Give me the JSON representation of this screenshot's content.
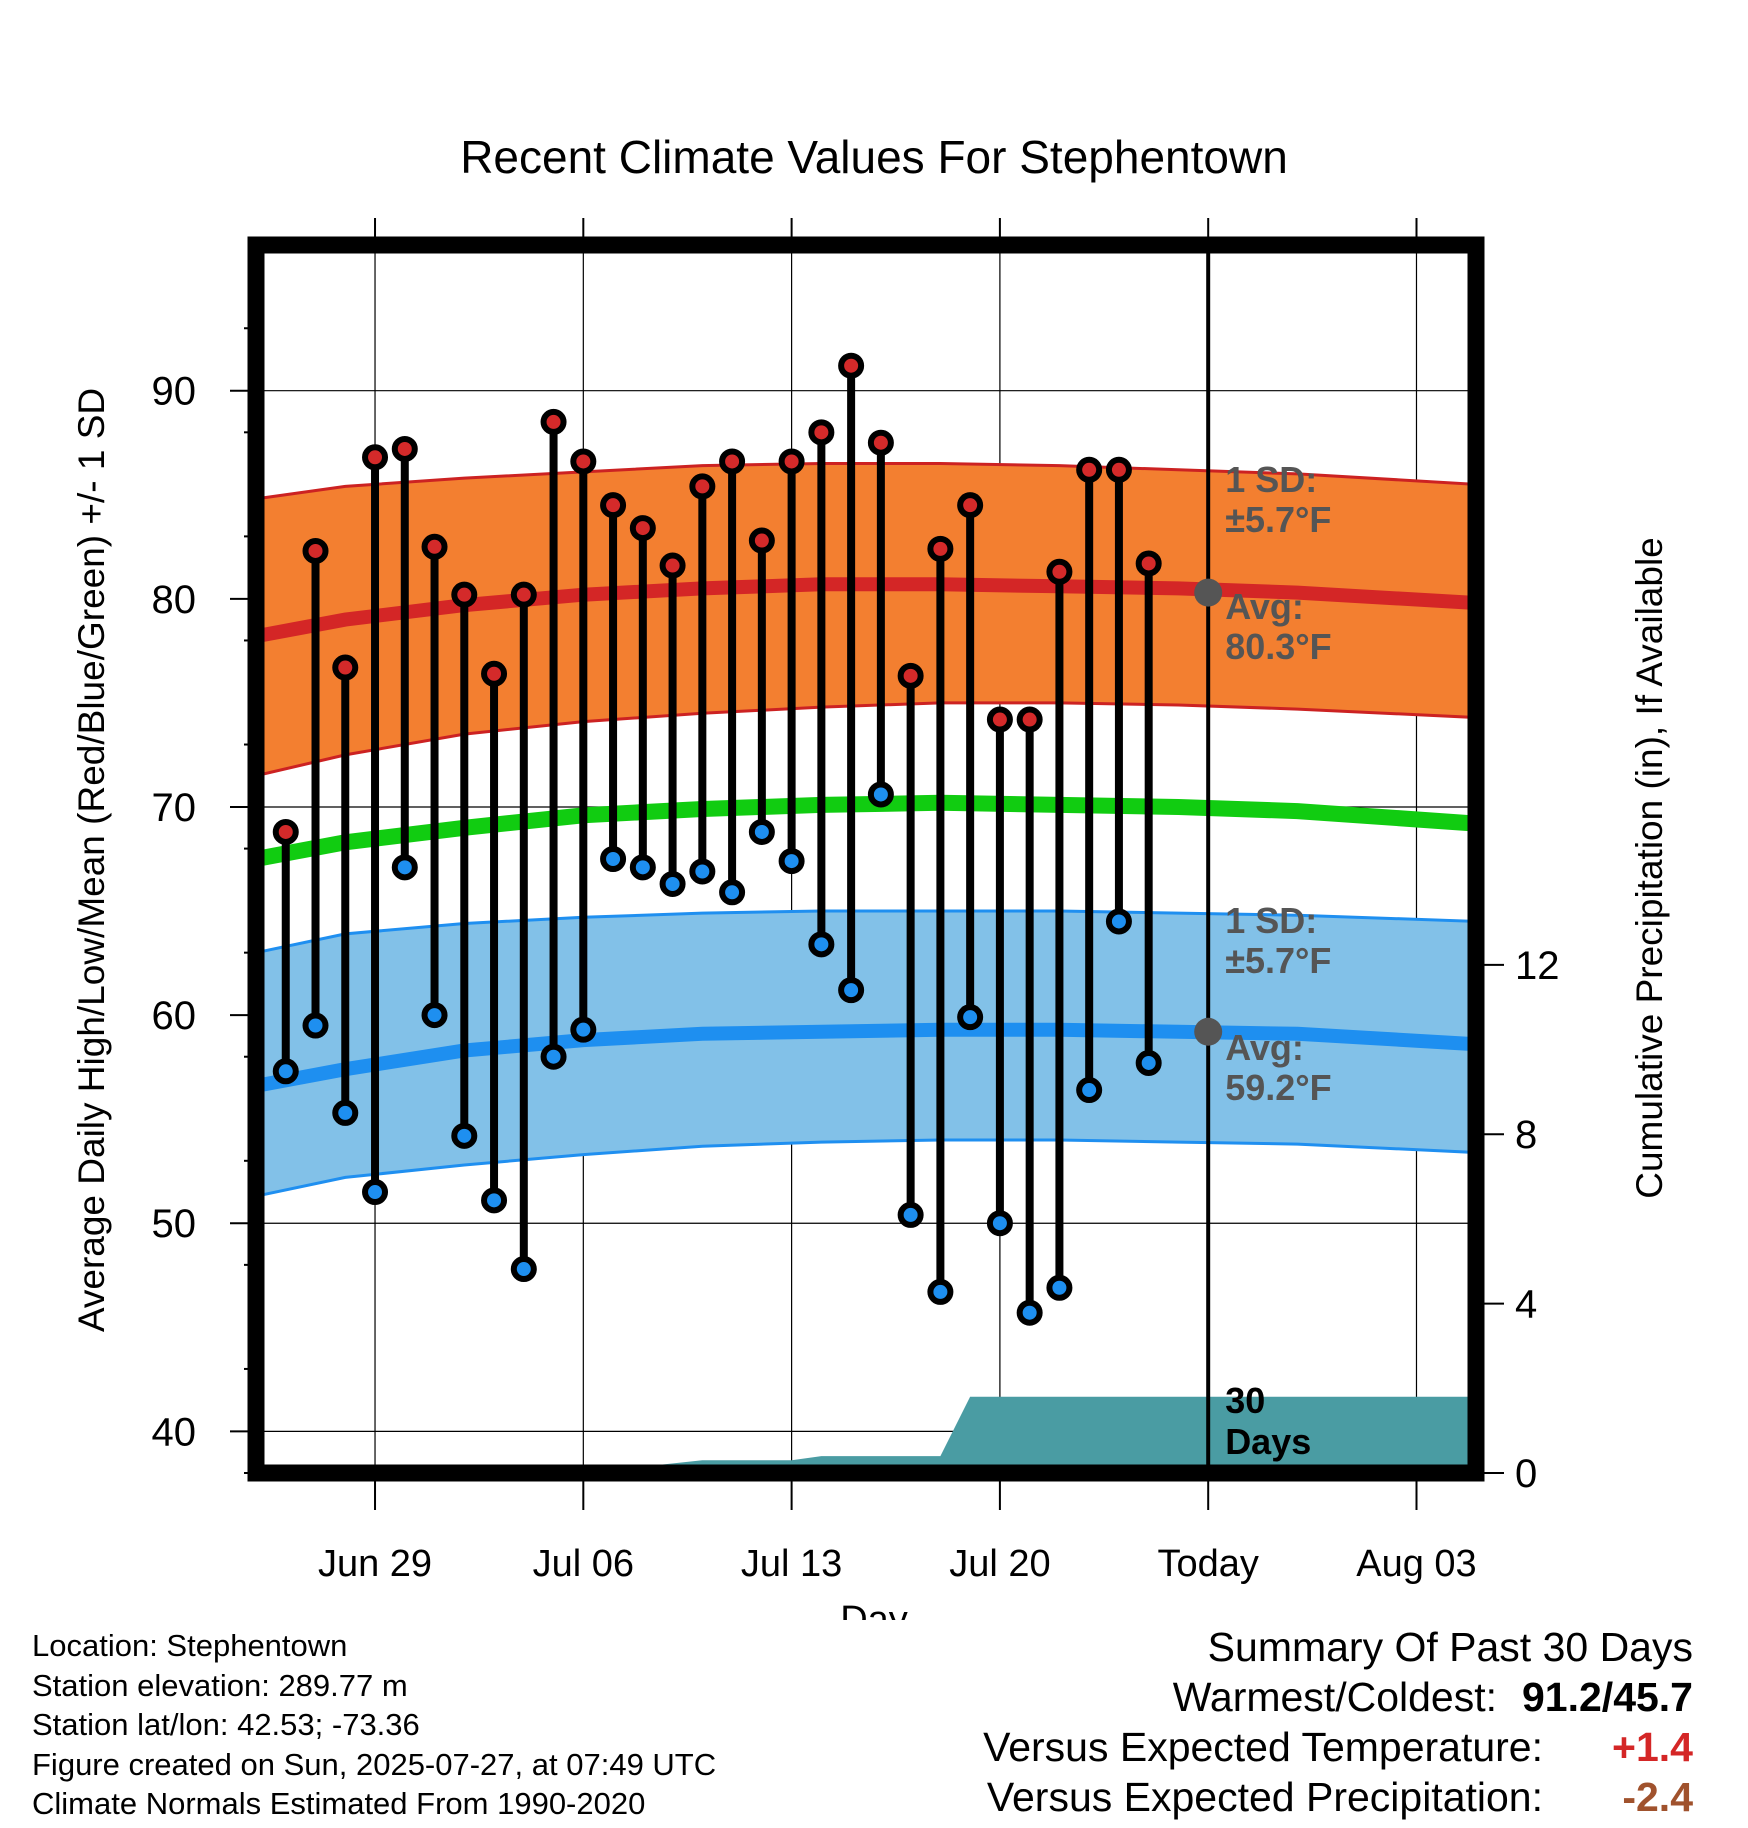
{
  "colors": {
    "high_point": "#d42a2a",
    "low_point": "#1e8ff0",
    "high_band": "#f37f30",
    "high_band_edge": "#cc2222",
    "high_avg_line": "#d42626",
    "low_band": "#82c1e8",
    "low_band_edge": "#1f8ff0",
    "low_avg_line": "#1e8ff0",
    "mean_line": "#11cc11",
    "precip_fill": "#4a9ca3",
    "annotation": "#555555",
    "temp_departure": "#d42626",
    "precip_departure": "#a0522d"
  },
  "chart_data": {
    "type": "range-dot",
    "title": "Recent Climate Values For Stephentown",
    "xlabel": "Day",
    "ylabel": "Average Daily High/Low/Mean (Red/Blue/Green) +/- 1 SD",
    "y2label": "Cumulative Precipitation (in), If Available",
    "ylim": [
      38,
      97
    ],
    "y2lim": [
      0,
      29
    ],
    "xlim": [
      "2025-06-25",
      "2025-08-05"
    ],
    "yticks": [
      40,
      50,
      60,
      70,
      80,
      90
    ],
    "y2ticks": [
      0,
      4,
      8,
      12
    ],
    "xticks": [
      {
        "date": "2025-06-29",
        "label": "Jun 29"
      },
      {
        "date": "2025-07-06",
        "label": "Jul 06"
      },
      {
        "date": "2025-07-13",
        "label": "Jul 13"
      },
      {
        "date": "2025-07-20",
        "label": "Jul 20"
      },
      {
        "date": "2025-07-27",
        "label": "Today"
      },
      {
        "date": "2025-08-03",
        "label": "Aug 03"
      }
    ],
    "today": "2025-07-27",
    "observed": [
      {
        "date": "2025-06-26",
        "high": 68.8,
        "low": 57.3
      },
      {
        "date": "2025-06-27",
        "high": 82.3,
        "low": 59.5
      },
      {
        "date": "2025-06-28",
        "high": 76.7,
        "low": 55.3
      },
      {
        "date": "2025-06-29",
        "high": 86.8,
        "low": 51.5
      },
      {
        "date": "2025-06-30",
        "high": 87.2,
        "low": 67.1
      },
      {
        "date": "2025-07-01",
        "high": 82.5,
        "low": 60.0
      },
      {
        "date": "2025-07-02",
        "high": 80.2,
        "low": 54.2
      },
      {
        "date": "2025-07-03",
        "high": 76.4,
        "low": 51.1
      },
      {
        "date": "2025-07-04",
        "high": 80.2,
        "low": 47.8
      },
      {
        "date": "2025-07-05",
        "high": 88.5,
        "low": 58.0
      },
      {
        "date": "2025-07-06",
        "high": 86.6,
        "low": 59.3
      },
      {
        "date": "2025-07-07",
        "high": 84.5,
        "low": 67.5
      },
      {
        "date": "2025-07-08",
        "high": 83.4,
        "low": 67.1
      },
      {
        "date": "2025-07-09",
        "high": 81.6,
        "low": 66.3
      },
      {
        "date": "2025-07-10",
        "high": 85.4,
        "low": 66.9
      },
      {
        "date": "2025-07-11",
        "high": 86.6,
        "low": 65.9
      },
      {
        "date": "2025-07-12",
        "high": 82.8,
        "low": 68.8
      },
      {
        "date": "2025-07-13",
        "high": 86.6,
        "low": 67.4
      },
      {
        "date": "2025-07-14",
        "high": 88.0,
        "low": 63.4
      },
      {
        "date": "2025-07-15",
        "high": 91.2,
        "low": 61.2
      },
      {
        "date": "2025-07-16",
        "high": 87.5,
        "low": 70.6
      },
      {
        "date": "2025-07-17",
        "high": 76.3,
        "low": 50.4
      },
      {
        "date": "2025-07-18",
        "high": 82.4,
        "low": 46.7
      },
      {
        "date": "2025-07-19",
        "high": 84.5,
        "low": 59.9
      },
      {
        "date": "2025-07-20",
        "high": 74.2,
        "low": 50.0
      },
      {
        "date": "2025-07-21",
        "high": 74.2,
        "low": 45.7
      },
      {
        "date": "2025-07-22",
        "high": 81.3,
        "low": 46.9
      },
      {
        "date": "2025-07-23",
        "high": 86.2,
        "low": 56.4
      },
      {
        "date": "2025-07-24",
        "high": 86.2,
        "low": 64.5
      },
      {
        "date": "2025-07-25",
        "high": 81.7,
        "low": 57.7
      }
    ],
    "normal_high": {
      "dates": [
        "2025-06-25",
        "2025-06-28",
        "2025-07-02",
        "2025-07-06",
        "2025-07-10",
        "2025-07-14",
        "2025-07-18",
        "2025-07-22",
        "2025-07-26",
        "2025-07-30",
        "2025-08-05"
      ],
      "avg": [
        78.2,
        79.0,
        79.7,
        80.2,
        80.5,
        80.7,
        80.7,
        80.6,
        80.5,
        80.3,
        79.8
      ],
      "lower": [
        71.5,
        72.5,
        73.5,
        74.1,
        74.5,
        74.8,
        75.0,
        75.0,
        74.9,
        74.7,
        74.3
      ],
      "upper": [
        84.8,
        85.4,
        85.8,
        86.1,
        86.4,
        86.5,
        86.5,
        86.4,
        86.2,
        86.0,
        85.5
      ]
    },
    "normal_low": {
      "dates": [
        "2025-06-25",
        "2025-06-28",
        "2025-07-02",
        "2025-07-06",
        "2025-07-10",
        "2025-07-14",
        "2025-07-18",
        "2025-07-22",
        "2025-07-26",
        "2025-07-30",
        "2025-08-05"
      ],
      "avg": [
        56.6,
        57.4,
        58.3,
        58.8,
        59.1,
        59.2,
        59.3,
        59.3,
        59.2,
        59.1,
        58.6
      ],
      "lower": [
        51.3,
        52.2,
        52.8,
        53.3,
        53.7,
        53.9,
        54.0,
        54.0,
        53.9,
        53.8,
        53.4
      ],
      "upper": [
        63.0,
        63.9,
        64.4,
        64.7,
        64.9,
        65.0,
        65.0,
        65.0,
        64.9,
        64.8,
        64.5
      ]
    },
    "normal_mean": {
      "dates": [
        "2025-06-25",
        "2025-06-28",
        "2025-07-02",
        "2025-07-06",
        "2025-07-10",
        "2025-07-14",
        "2025-07-18",
        "2025-07-22",
        "2025-07-26",
        "2025-07-30",
        "2025-08-05"
      ],
      "values": [
        67.5,
        68.3,
        69.0,
        69.6,
        69.9,
        70.1,
        70.2,
        70.1,
        70.0,
        69.8,
        69.2
      ]
    },
    "cumulative_precip": {
      "dates": [
        "2025-06-25",
        "2025-07-06",
        "2025-07-07",
        "2025-07-08",
        "2025-07-10",
        "2025-07-13",
        "2025-07-14",
        "2025-07-18",
        "2025-07-19",
        "2025-07-25",
        "2025-08-05"
      ],
      "values": [
        0.0,
        0.0,
        0.1,
        0.15,
        0.3,
        0.3,
        0.4,
        0.4,
        1.8,
        1.8,
        1.8
      ]
    },
    "annotations": {
      "high_sd_label": "1 SD:",
      "high_sd_value": "±5.7°F",
      "high_avg_label": "Avg:",
      "high_avg_value": "80.3°F",
      "high_avg": 80.3,
      "low_sd_label": "1 SD:",
      "low_sd_value": "±5.7°F",
      "low_avg_label": "Avg:",
      "low_avg_value": "59.2°F",
      "low_avg": 59.2,
      "precip_label_1": "30",
      "precip_label_2": "Days"
    }
  },
  "footer": {
    "location": "Location: Stephentown",
    "elevation": "Station elevation: 289.77 m",
    "latlon": "Station lat/lon: 42.53; -73.36",
    "created": "Figure created on Sun, 2025-07-27, at 07:49 UTC",
    "normals": "Climate Normals Estimated From 1990-2020"
  },
  "summary": {
    "title": "Summary Of Past 30 Days",
    "warmest_coldest_label": "Warmest/Coldest:",
    "warmest_coldest_value": "91.2/45.7",
    "temp_label": "Versus Expected Temperature:",
    "temp_value": "+1.4",
    "precip_label": "Versus Expected Precipitation:",
    "precip_value": "-2.4"
  }
}
